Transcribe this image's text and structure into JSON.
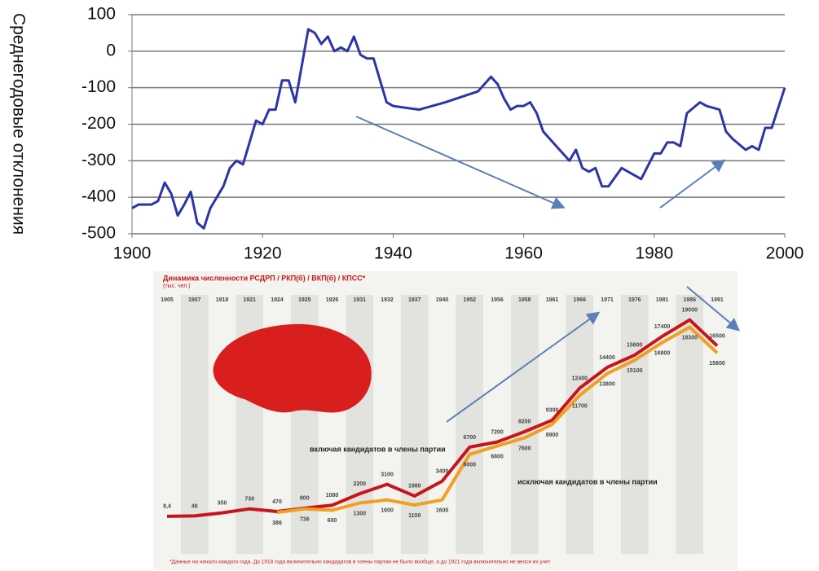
{
  "chart_data": [
    {
      "type": "line",
      "ylabel": "Среднегодовые отклонения",
      "x": [
        1900,
        1901,
        1903,
        1904,
        1905,
        1906,
        1907,
        1908,
        1909,
        1910,
        1911,
        1912,
        1914,
        1915,
        1916,
        1917,
        1918,
        1919,
        1920,
        1921,
        1922,
        1923,
        1924,
        1925,
        1926,
        1927,
        1928,
        1929,
        1930,
        1931,
        1932,
        1933,
        1934,
        1935,
        1936,
        1937,
        1938,
        1939,
        1940,
        1944,
        1948,
        1953,
        1955,
        1956,
        1957,
        1958,
        1959,
        1960,
        1961,
        1962,
        1963,
        1965,
        1967,
        1968,
        1969,
        1970,
        1971,
        1972,
        1973,
        1975,
        1976,
        1978,
        1980,
        1981,
        1982,
        1983,
        1984,
        1985,
        1987,
        1988,
        1990,
        1991,
        1992,
        1994,
        1995,
        1996,
        1997,
        1998,
        2000
      ],
      "values": [
        -430,
        -420,
        -420,
        -410,
        -360,
        -390,
        -450,
        -420,
        -385,
        -470,
        -485,
        -430,
        -370,
        -320,
        -300,
        -310,
        -250,
        -190,
        -200,
        -160,
        -160,
        -80,
        -80,
        -140,
        -40,
        60,
        50,
        20,
        40,
        0,
        10,
        0,
        40,
        -10,
        -20,
        -20,
        -80,
        -140,
        -150,
        -160,
        -140,
        -110,
        -70,
        -90,
        -130,
        -160,
        -150,
        -150,
        -140,
        -170,
        -220,
        -260,
        -300,
        -270,
        -320,
        -330,
        -320,
        -370,
        -370,
        -320,
        -330,
        -350,
        -280,
        -280,
        -250,
        -250,
        -260,
        -170,
        -140,
        -150,
        -160,
        -220,
        -240,
        -270,
        -260,
        -270,
        -210,
        -210,
        -100
      ],
      "color": "#2b35a8",
      "xlim": [
        1900,
        2000
      ],
      "xticks": [
        1900,
        1920,
        1940,
        1960,
        1980,
        2000
      ],
      "ylim": [
        -500,
        100
      ],
      "yticks": [
        -500,
        -400,
        -300,
        -200,
        -100,
        0,
        100
      ],
      "grid": true
    },
    {
      "type": "line",
      "title": "Динамика численности РСДРП / РКП(б) / ВКП(б) / КПСС*",
      "subtitle": "(тыс. чел.)",
      "note": "*Данные на начало каждого года. До 1918 года включительно кандидатов в члены партии не было вообще, а до 1921 года включительно не велся их учет",
      "categories": [
        "1905",
        "1907",
        "1918",
        "1921",
        "1924",
        "1925",
        "1926",
        "1931",
        "1932",
        "1937",
        "1940",
        "1952",
        "1956",
        "1958",
        "1961",
        "1966",
        "1971",
        "1976",
        "1981",
        "1986",
        "1991"
      ],
      "ylim": [
        0,
        20000
      ],
      "series": [
        {
          "name": "включая кандидатов в члены партии",
          "color": "#c8151b",
          "values": [
            8.4,
            46,
            350,
            730,
            470,
            800,
            1080,
            2200,
            3100,
            1980,
            3400,
            6700,
            7200,
            8200,
            9300,
            12400,
            14400,
            15600,
            17400,
            19000,
            16500
          ],
          "value_labels": [
            "8,4",
            "46",
            "350",
            "730",
            "470",
            "800",
            "1080",
            "2200",
            "3100",
            "1980",
            "3400",
            "6700",
            "7200",
            "8200",
            "9300",
            "12400",
            "14400",
            "15600",
            "17400",
            "19000",
            "16500"
          ]
        },
        {
          "name": "исключая кандидатов в члены партии",
          "color": "#f0a020",
          "values": [
            null,
            null,
            null,
            null,
            386,
            736,
            600,
            1300,
            1600,
            1100,
            1600,
            6000,
            6800,
            7600,
            8900,
            11700,
            13800,
            15100,
            16800,
            18300,
            15800
          ],
          "value_labels": [
            null,
            null,
            null,
            null,
            "386",
            "736",
            "600",
            "1300",
            "1600",
            "1100",
            "1600",
            "6000",
            "6800",
            "7600",
            "8900",
            "11700",
            "13800",
            "15100",
            "16800",
            "18300",
            "15800"
          ]
        }
      ]
    }
  ]
}
